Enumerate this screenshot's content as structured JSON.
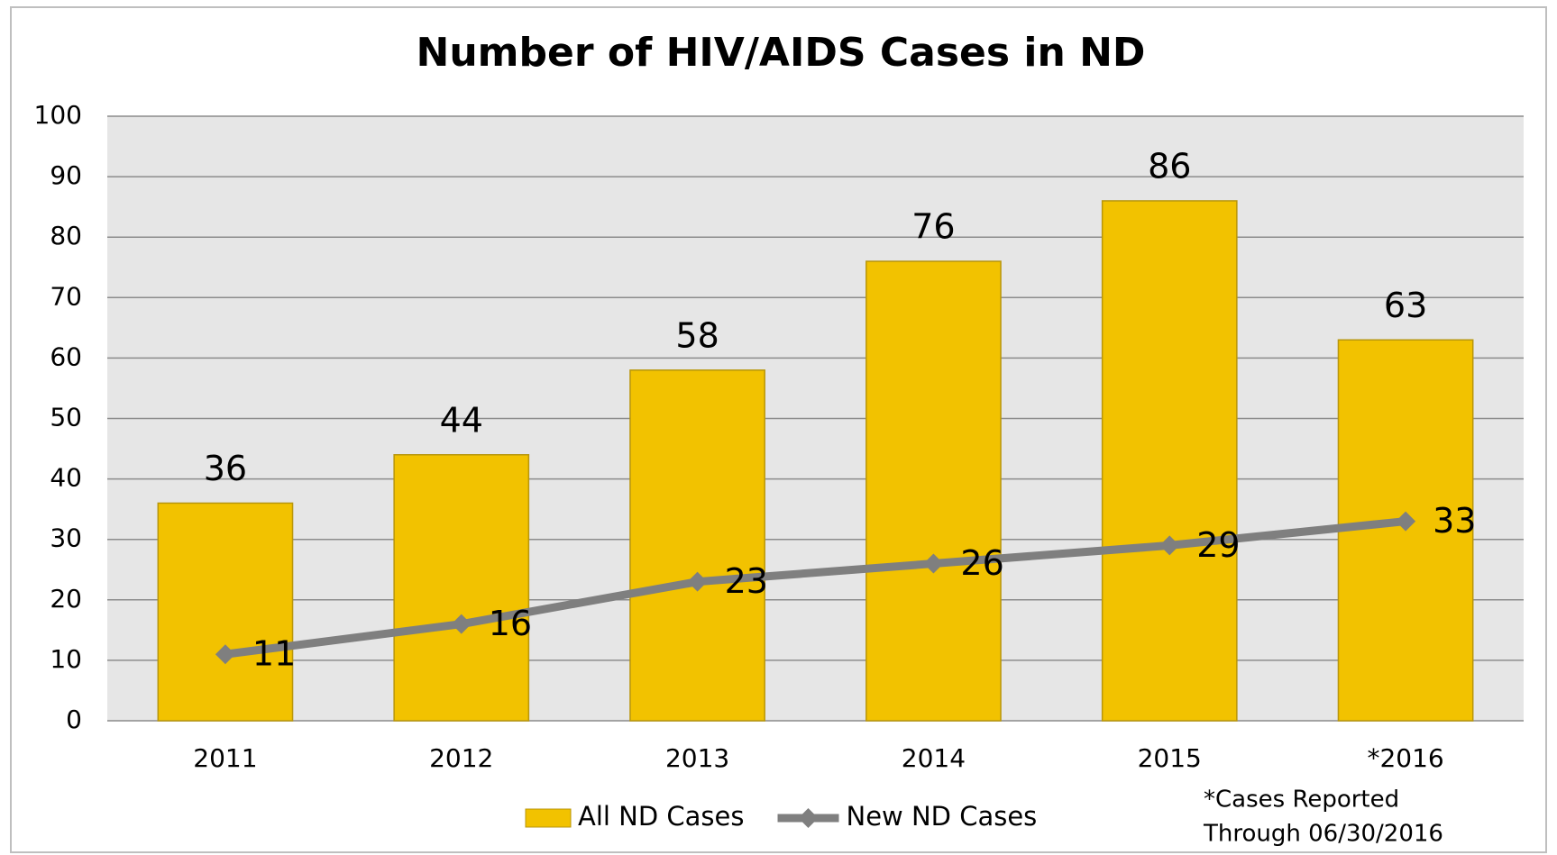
{
  "chart_data": {
    "type": "bar",
    "title": "Number of HIV/AIDS Cases in ND",
    "categories": [
      "2011",
      "2012",
      "2013",
      "2014",
      "2015",
      "*2016"
    ],
    "series": [
      {
        "name": "All ND Cases",
        "type": "bar",
        "color": "#f2c200",
        "values": [
          36,
          44,
          58,
          76,
          86,
          63
        ]
      },
      {
        "name": "New ND Cases",
        "type": "line",
        "color": "#7f7f7f",
        "values": [
          11,
          16,
          23,
          26,
          29,
          33
        ]
      }
    ],
    "ylim": [
      0,
      100
    ],
    "yticks": [
      0,
      10,
      20,
      30,
      40,
      50,
      60,
      70,
      80,
      90,
      100
    ],
    "grid": true,
    "legend": "bottom",
    "annotation": [
      "*Cases Reported",
      "Through 06/30/2016"
    ]
  }
}
